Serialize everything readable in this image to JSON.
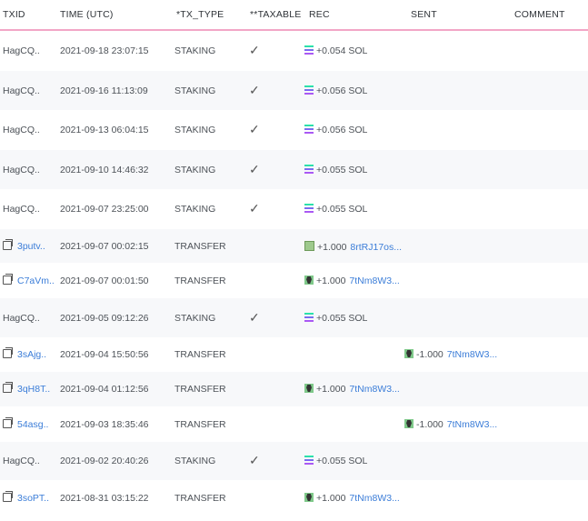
{
  "headers": {
    "txid": "TXID",
    "time": "TIME (UTC)",
    "tx_type": "*TX_TYPE",
    "taxable": "**TAXABLE",
    "rec": "REC",
    "sent": "SENT",
    "comment": "COMMENT"
  },
  "colors": {
    "link": "#3b7dd8",
    "header_border": "#f2a6c6",
    "row_alt": "#f7f8fa"
  },
  "rows": [
    {
      "txid": "HagCQ..",
      "link": false,
      "time": "2021-09-18 23:07:15",
      "type": "STAKING",
      "taxable": true,
      "rec_icon": "sol-icon",
      "rec_amount": "+0.054 SOL",
      "rec_addr": "",
      "sent_icon": "",
      "sent_amount": "",
      "sent_addr": ""
    },
    {
      "txid": "HagCQ..",
      "link": false,
      "time": "2021-09-16 11:13:09",
      "type": "STAKING",
      "taxable": true,
      "rec_icon": "sol-icon",
      "rec_amount": "+0.056 SOL",
      "rec_addr": "",
      "sent_icon": "",
      "sent_amount": "",
      "sent_addr": ""
    },
    {
      "txid": "HagCQ..",
      "link": false,
      "time": "2021-09-13 06:04:15",
      "type": "STAKING",
      "taxable": true,
      "rec_icon": "sol-icon",
      "rec_amount": "+0.056 SOL",
      "rec_addr": "",
      "sent_icon": "",
      "sent_amount": "",
      "sent_addr": ""
    },
    {
      "txid": "HagCQ..",
      "link": false,
      "time": "2021-09-10 14:46:32",
      "type": "STAKING",
      "taxable": true,
      "rec_icon": "sol-icon",
      "rec_amount": "+0.055 SOL",
      "rec_addr": "",
      "sent_icon": "",
      "sent_amount": "",
      "sent_addr": ""
    },
    {
      "txid": "HagCQ..",
      "link": false,
      "time": "2021-09-07 23:25:00",
      "type": "STAKING",
      "taxable": true,
      "rec_icon": "sol-icon",
      "rec_amount": "+0.055 SOL",
      "rec_addr": "",
      "sent_icon": "",
      "sent_amount": "",
      "sent_addr": ""
    },
    {
      "txid": "3putv..",
      "link": true,
      "time": "2021-09-07 00:02:15",
      "type": "TRANSFER",
      "taxable": false,
      "rec_icon": "nft-a-icon",
      "rec_amount": "+1.000",
      "rec_addr": "8rtRJ17os...",
      "sent_icon": "",
      "sent_amount": "",
      "sent_addr": ""
    },
    {
      "txid": "C7aVm..",
      "link": true,
      "time": "2021-09-07 00:01:50",
      "type": "TRANSFER",
      "taxable": false,
      "rec_icon": "nft-b-icon",
      "rec_amount": "+1.000",
      "rec_addr": "7tNm8W3...",
      "sent_icon": "",
      "sent_amount": "",
      "sent_addr": ""
    },
    {
      "txid": "HagCQ..",
      "link": false,
      "time": "2021-09-05 09:12:26",
      "type": "STAKING",
      "taxable": true,
      "rec_icon": "sol-icon",
      "rec_amount": "+0.055 SOL",
      "rec_addr": "",
      "sent_icon": "",
      "sent_amount": "",
      "sent_addr": ""
    },
    {
      "txid": "3sAjg..",
      "link": true,
      "time": "2021-09-04 15:50:56",
      "type": "TRANSFER",
      "taxable": false,
      "rec_icon": "",
      "rec_amount": "",
      "rec_addr": "",
      "sent_icon": "nft-b-icon",
      "sent_amount": "-1.000",
      "sent_addr": "7tNm8W3..."
    },
    {
      "txid": "3qH8T..",
      "link": true,
      "time": "2021-09-04 01:12:56",
      "type": "TRANSFER",
      "taxable": false,
      "rec_icon": "nft-b-icon",
      "rec_amount": "+1.000",
      "rec_addr": "7tNm8W3...",
      "sent_icon": "",
      "sent_amount": "",
      "sent_addr": ""
    },
    {
      "txid": "54asg..",
      "link": true,
      "time": "2021-09-03 18:35:46",
      "type": "TRANSFER",
      "taxable": false,
      "rec_icon": "",
      "rec_amount": "",
      "rec_addr": "",
      "sent_icon": "nft-b-icon",
      "sent_amount": "-1.000",
      "sent_addr": "7tNm8W3..."
    },
    {
      "txid": "HagCQ..",
      "link": false,
      "time": "2021-09-02 20:40:26",
      "type": "STAKING",
      "taxable": true,
      "rec_icon": "sol-icon",
      "rec_amount": "+0.055 SOL",
      "rec_addr": "",
      "sent_icon": "",
      "sent_amount": "",
      "sent_addr": ""
    },
    {
      "txid": "3soPT..",
      "link": true,
      "time": "2021-08-31 03:15:22",
      "type": "TRANSFER",
      "taxable": false,
      "rec_icon": "nft-b-icon",
      "rec_amount": "+1.000",
      "rec_addr": "7tNm8W3...",
      "sent_icon": "",
      "sent_amount": "",
      "sent_addr": ""
    }
  ]
}
